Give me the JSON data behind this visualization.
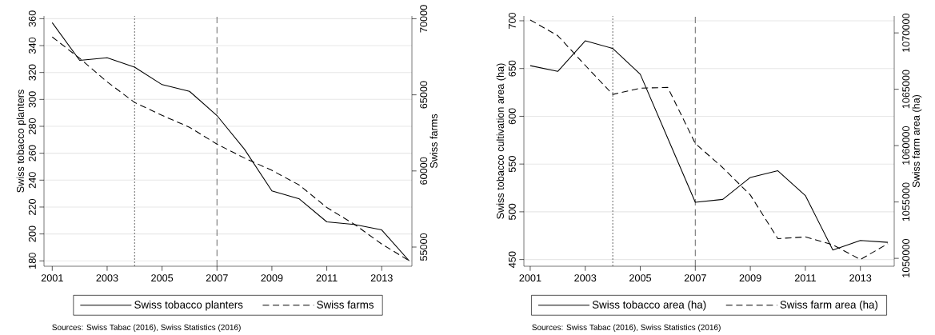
{
  "chart_data": [
    {
      "type": "line",
      "x": [
        2001,
        2002,
        2003,
        2004,
        2005,
        2006,
        2007,
        2008,
        2009,
        2010,
        2011,
        2012,
        2013,
        2014
      ],
      "ylabel": "Swiss tobacco planters",
      "y2label": "Swiss farms",
      "xlim": [
        2000.7,
        2014.1
      ],
      "xticks": [
        2001,
        2003,
        2005,
        2007,
        2009,
        2011,
        2013
      ],
      "ylim": [
        176,
        362
      ],
      "yticks": [
        180,
        200,
        220,
        240,
        260,
        280,
        300,
        320,
        340,
        360
      ],
      "y2lim": [
        53740,
        70180
      ],
      "y2ticks": [
        55000,
        60000,
        65000,
        70000
      ],
      "series": [
        {
          "name": "Swiss tobacco planters",
          "color": "#000000",
          "line_style": "solid",
          "values": [
            357,
            329,
            331,
            324,
            311,
            306,
            288,
            263,
            232,
            226,
            209,
            207,
            203,
            180
          ]
        },
        {
          "name": "Swiss farms",
          "color": "#000000",
          "line_style": "dashed",
          "axis": "y2",
          "values": [
            68800,
            67400,
            65850,
            64500,
            63650,
            62870,
            61760,
            60850,
            60040,
            59070,
            57600,
            56500,
            55200,
            54100
          ]
        }
      ],
      "ref_lines": [
        {
          "axis": "x",
          "value": 2004,
          "line_style": "dotted",
          "color": "#444444"
        },
        {
          "axis": "x",
          "value": 2007,
          "line_style": "dashed",
          "color": "#444444"
        }
      ],
      "grid": "y",
      "legend": "bottom",
      "annotations": [
        "Sources: Swiss Tabac (2016), Swiss Statistics (2016)"
      ]
    },
    {
      "type": "line",
      "x": [
        2001,
        2002,
        2003,
        2004,
        2005,
        2006,
        2007,
        2008,
        2009,
        2010,
        2011,
        2012,
        2013,
        2014
      ],
      "ylabel": "Swiss tobacco cultivation area (ha)",
      "y2label": "Swiss farm area (ha)",
      "xlim": [
        2000.77,
        2014.23
      ],
      "xticks": [
        2001,
        2003,
        2005,
        2007,
        2009,
        2011,
        2013
      ],
      "ylim": [
        443,
        705
      ],
      "yticks": [
        450,
        500,
        550,
        600,
        650,
        700
      ],
      "y2lim": [
        1049300,
        1071500
      ],
      "y2ticks": [
        1050000,
        1055000,
        1060000,
        1065000,
        1070000
      ],
      "series": [
        {
          "name": "Swiss tobacco area (ha)",
          "color": "#000000",
          "line_style": "solid",
          "values": [
            653,
            647,
            679,
            671,
            644,
            577,
            510,
            513,
            536,
            543,
            517,
            460,
            470,
            468
          ]
        },
        {
          "name": "Swiss farm area (ha)",
          "color": "#000000",
          "line_style": "dashed",
          "axis": "y2",
          "values": [
            1071150,
            1069760,
            1067120,
            1064540,
            1065100,
            1065160,
            1060190,
            1058040,
            1055620,
            1051750,
            1051900,
            1051200,
            1049900,
            1051300
          ]
        }
      ],
      "ref_lines": [
        {
          "axis": "x",
          "value": 2004,
          "line_style": "dotted",
          "color": "#444444"
        },
        {
          "axis": "x",
          "value": 2007,
          "line_style": "dashed",
          "color": "#444444"
        }
      ],
      "grid": "y",
      "legend": "bottom",
      "annotations": [
        "Sources: Swiss Tabac (2016), Swiss Statistics (2016)"
      ]
    }
  ]
}
